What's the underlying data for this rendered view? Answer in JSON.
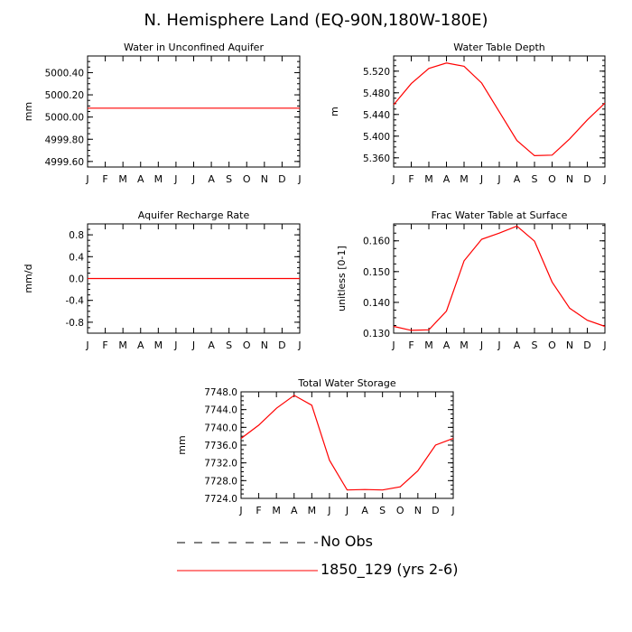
{
  "title": "N. Hemisphere Land (EQ-90N,180W-180E)",
  "months": [
    "J",
    "F",
    "M",
    "A",
    "M",
    "J",
    "J",
    "A",
    "S",
    "O",
    "N",
    "D",
    "J"
  ],
  "series_color": "#ff0000",
  "legend": [
    {
      "label": "No Obs",
      "style": "dashed",
      "color": "#000000"
    },
    {
      "label": "1850_129 (yrs 2-6)",
      "style": "solid",
      "color": "#ff0000"
    }
  ],
  "chart_data": [
    {
      "type": "line",
      "title": "Water in Unconfined Aquifer",
      "ylabel": "mm",
      "ylim": [
        4999.55,
        5000.55
      ],
      "yticks": [
        4999.6,
        4999.8,
        5000.0,
        5000.2,
        5000.4
      ],
      "ytick_labels": [
        "4999.60",
        "4999.80",
        "5000.00",
        "5000.20",
        "5000.40"
      ],
      "series": [
        {
          "name": "1850_129 (yrs 2-6)",
          "values": [
            5000.08,
            5000.08,
            5000.08,
            5000.08,
            5000.08,
            5000.08,
            5000.08,
            5000.08,
            5000.08,
            5000.08,
            5000.08,
            5000.08,
            5000.08
          ]
        }
      ]
    },
    {
      "type": "line",
      "title": "Water Table Depth",
      "ylabel": "m",
      "ylim": [
        5.343,
        5.548
      ],
      "yticks": [
        5.36,
        5.4,
        5.44,
        5.48,
        5.52
      ],
      "ytick_labels": [
        "5.360",
        "5.400",
        "5.440",
        "5.480",
        "5.520"
      ],
      "series": [
        {
          "name": "1850_129 (yrs 2-6)",
          "values": [
            5.458,
            5.497,
            5.525,
            5.535,
            5.529,
            5.498,
            5.445,
            5.392,
            5.364,
            5.365,
            5.395,
            5.43,
            5.461
          ]
        }
      ]
    },
    {
      "type": "line",
      "title": "Aquifer Recharge Rate",
      "ylabel": "mm/d",
      "ylim": [
        -1.0,
        1.0
      ],
      "yticks": [
        -0.8,
        -0.4,
        0.0,
        0.4,
        0.8
      ],
      "ytick_labels": [
        "-0.8",
        "-0.4",
        "0.0",
        "0.4",
        "0.8"
      ],
      "series": [
        {
          "name": "1850_129 (yrs 2-6)",
          "values": [
            0,
            0,
            0,
            0,
            0,
            0,
            0,
            0,
            0,
            0,
            0,
            0,
            0
          ]
        }
      ]
    },
    {
      "type": "line",
      "title": "Frac Water Table at Surface",
      "ylabel": "unitless [0-1]",
      "ylim": [
        0.13,
        0.1655
      ],
      "yticks": [
        0.13,
        0.14,
        0.15,
        0.16
      ],
      "ytick_labels": [
        "0.130",
        "0.140",
        "0.150",
        "0.160"
      ],
      "series": [
        {
          "name": "1850_129 (yrs 2-6)",
          "values": [
            0.1322,
            0.1309,
            0.1311,
            0.1372,
            0.1535,
            0.1605,
            0.1625,
            0.1648,
            0.1599,
            0.1466,
            0.1381,
            0.1342,
            0.1322
          ]
        }
      ]
    },
    {
      "type": "line",
      "title": "Total Water Storage",
      "ylabel": "mm",
      "ylim": [
        7724.0,
        7748.0
      ],
      "yticks": [
        7724,
        7728,
        7732,
        7736,
        7740,
        7744,
        7748
      ],
      "ytick_labels": [
        "7724.0",
        "7728.0",
        "7732.0",
        "7736.0",
        "7740.0",
        "7744.0",
        "7748.0"
      ],
      "series": [
        {
          "name": "1850_129 (yrs 2-6)",
          "values": [
            7737.5,
            7740.5,
            7744.3,
            7747.2,
            7745.0,
            7732.6,
            7725.9,
            7726.0,
            7725.9,
            7726.6,
            7730.2,
            7736.0,
            7737.5
          ]
        }
      ]
    }
  ]
}
